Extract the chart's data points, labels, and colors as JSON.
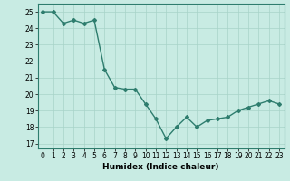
{
  "x": [
    0,
    1,
    2,
    3,
    4,
    5,
    6,
    7,
    8,
    9,
    10,
    11,
    12,
    13,
    14,
    15,
    16,
    17,
    18,
    19,
    20,
    21,
    22,
    23
  ],
  "y": [
    25,
    25,
    24.3,
    24.5,
    24.3,
    24.5,
    21.5,
    20.4,
    20.3,
    20.3,
    19.4,
    18.5,
    17.3,
    18.0,
    18.6,
    18.0,
    18.4,
    18.5,
    18.6,
    19.0,
    19.2,
    19.4,
    19.6,
    19.4
  ],
  "line_color": "#2e7d6e",
  "marker": "D",
  "marker_size": 2.0,
  "background_color": "#c8ebe3",
  "grid_color": "#a8d4c8",
  "xlabel": "Humidex (Indice chaleur)",
  "ylabel": "",
  "xlim": [
    -0.5,
    23.5
  ],
  "ylim": [
    16.7,
    25.5
  ],
  "yticks": [
    17,
    18,
    19,
    20,
    21,
    22,
    23,
    24,
    25
  ],
  "xticks": [
    0,
    1,
    2,
    3,
    4,
    5,
    6,
    7,
    8,
    9,
    10,
    11,
    12,
    13,
    14,
    15,
    16,
    17,
    18,
    19,
    20,
    21,
    22,
    23
  ],
  "tick_fontsize": 5.5,
  "label_fontsize": 6.5,
  "linewidth": 1.0
}
